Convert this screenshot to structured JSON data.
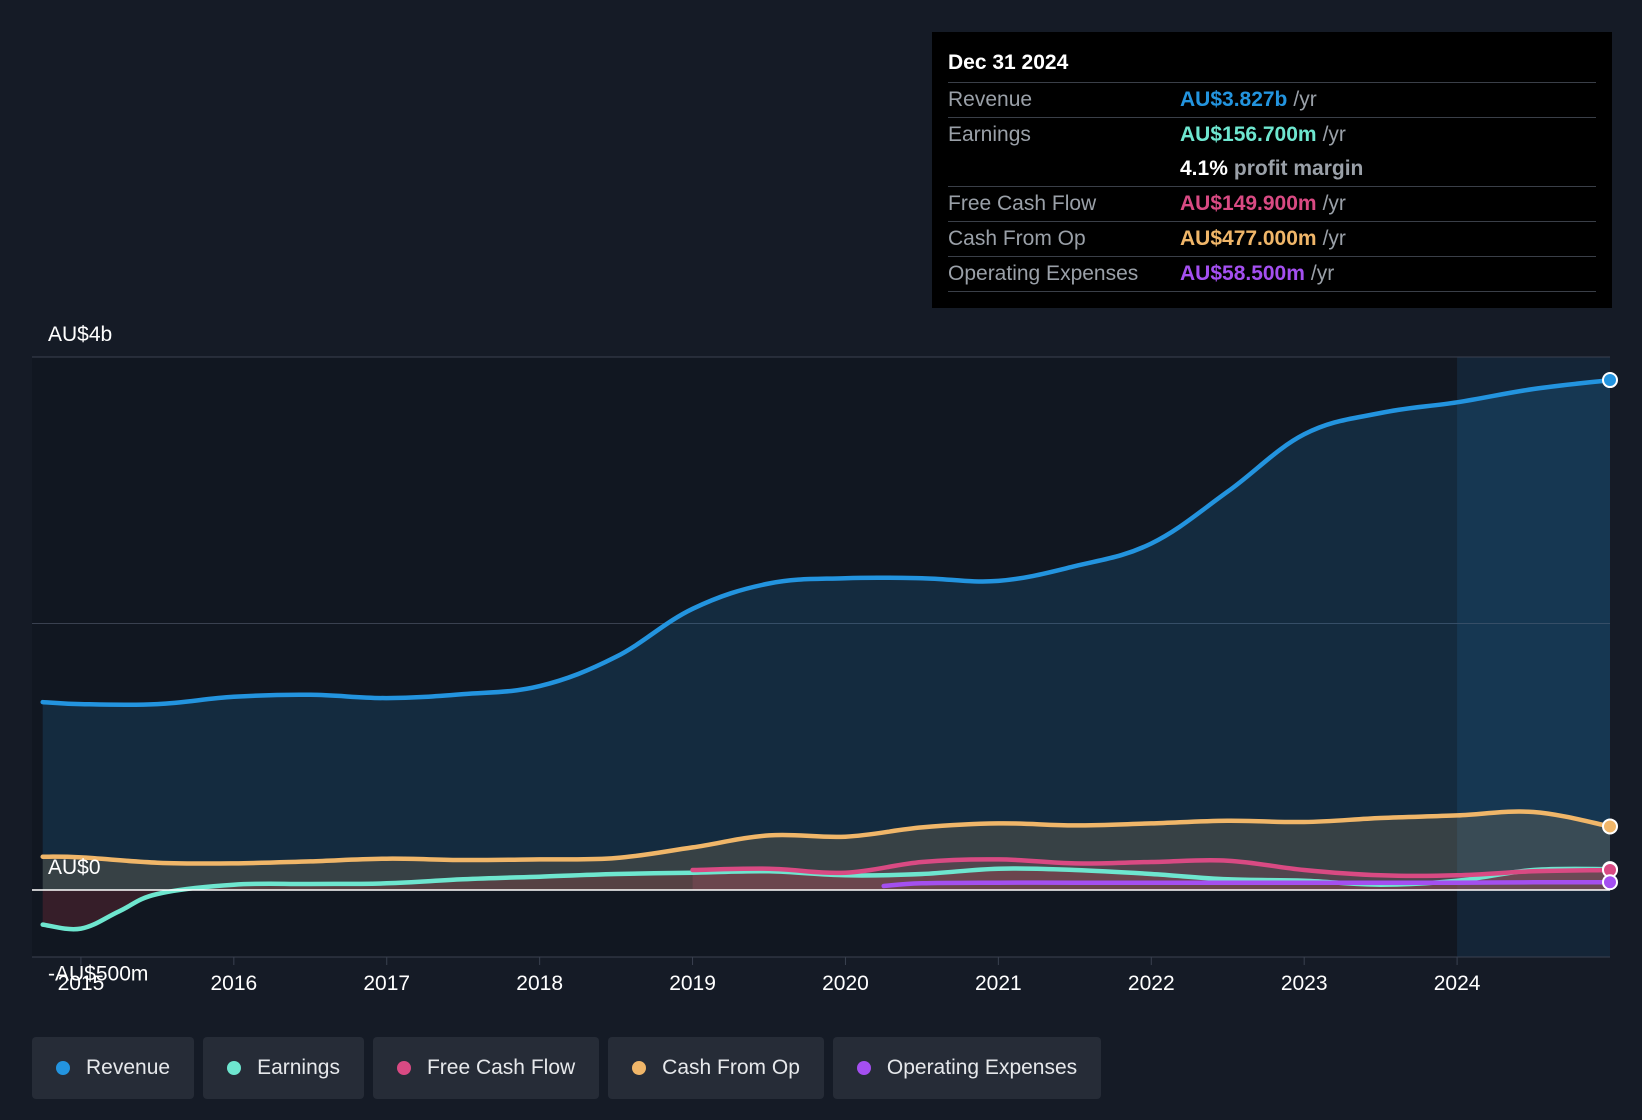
{
  "chart_data": {
    "type": "line",
    "y_unit": "AU$ millions",
    "ylim": [
      -500,
      4000
    ],
    "y_ticks": [
      {
        "value": 4000,
        "label": "AU$4b"
      },
      {
        "value": 0,
        "label": "AU$0"
      },
      {
        "value": -500,
        "label": "-AU$500m"
      }
    ],
    "xlim": [
      2014.68,
      2025.0
    ],
    "x_ticks": [
      2015,
      2016,
      2017,
      2018,
      2019,
      2020,
      2021,
      2022,
      2023,
      2024
    ],
    "highlight_start": 2024.0,
    "series": [
      {
        "name": "Revenue",
        "color": "#2394df",
        "fill": true,
        "x": [
          2014.75,
          2015.0,
          2015.5,
          2016.0,
          2016.5,
          2017.0,
          2017.5,
          2018.0,
          2018.5,
          2019.0,
          2019.5,
          2020.0,
          2020.5,
          2021.0,
          2021.5,
          2022.0,
          2022.5,
          2023.0,
          2023.5,
          2024.0,
          2024.5,
          2025.0
        ],
        "values": [
          1410,
          1395,
          1395,
          1450,
          1465,
          1440,
          1470,
          1530,
          1750,
          2110,
          2300,
          2340,
          2340,
          2320,
          2430,
          2600,
          2990,
          3420,
          3580,
          3660,
          3760,
          3827
        ]
      },
      {
        "name": "Earnings",
        "color": "#6ee6cf",
        "fill": true,
        "x": [
          2014.75,
          2015.0,
          2015.25,
          2015.5,
          2016.0,
          2016.5,
          2017.0,
          2017.5,
          2018.0,
          2018.5,
          2019.0,
          2019.5,
          2020.0,
          2020.5,
          2021.0,
          2021.5,
          2022.0,
          2022.5,
          2023.0,
          2023.5,
          2024.0,
          2024.5,
          2025.0
        ],
        "values": [
          -260,
          -290,
          -160,
          -30,
          40,
          45,
          50,
          80,
          100,
          120,
          130,
          140,
          110,
          120,
          160,
          150,
          120,
          80,
          70,
          40,
          70,
          150,
          156.7
        ]
      },
      {
        "name": "Free Cash Flow",
        "color": "#d94a83",
        "fill": true,
        "x": [
          2019.0,
          2019.5,
          2020.0,
          2020.5,
          2021.0,
          2021.5,
          2022.0,
          2022.5,
          2023.0,
          2023.5,
          2024.0,
          2024.5,
          2025.0
        ],
        "values": [
          150,
          160,
          130,
          210,
          230,
          200,
          210,
          220,
          150,
          110,
          110,
          140,
          149.9
        ]
      },
      {
        "name": "Cash From Op",
        "color": "#f0b669",
        "fill": true,
        "x": [
          2014.75,
          2015.0,
          2015.5,
          2016.0,
          2016.5,
          2017.0,
          2017.5,
          2018.0,
          2018.5,
          2019.0,
          2019.5,
          2020.0,
          2020.5,
          2021.0,
          2021.5,
          2022.0,
          2022.5,
          2023.0,
          2023.5,
          2024.0,
          2024.5,
          2025.0
        ],
        "values": [
          250,
          245,
          205,
          200,
          215,
          235,
          225,
          230,
          240,
          320,
          410,
          400,
          470,
          500,
          485,
          500,
          520,
          510,
          540,
          560,
          585,
          477
        ]
      },
      {
        "name": "Operating Expenses",
        "color": "#a44ff0",
        "fill": false,
        "x": [
          2020.25,
          2020.5,
          2021.0,
          2021.5,
          2022.0,
          2022.5,
          2023.0,
          2023.5,
          2024.0,
          2024.5,
          2025.0
        ],
        "values": [
          30,
          50,
          55,
          55,
          55,
          55,
          55,
          55,
          55,
          58,
          58.5
        ]
      }
    ]
  },
  "tooltip": {
    "date": "Dec 31 2024",
    "rows": [
      {
        "label": "Revenue",
        "value": "AU$3.827b",
        "unit": "/yr",
        "color": "#2394df"
      },
      {
        "label": "Earnings",
        "value": "AU$156.700m",
        "unit": "/yr",
        "color": "#6ee6cf"
      },
      {
        "label": "",
        "value": "4.1%",
        "unit": "profit margin",
        "color": "#ffffff"
      },
      {
        "label": "Free Cash Flow",
        "value": "AU$149.900m",
        "unit": "/yr",
        "color": "#d94a83"
      },
      {
        "label": "Cash From Op",
        "value": "AU$477.000m",
        "unit": "/yr",
        "color": "#f0b669"
      },
      {
        "label": "Operating Expenses",
        "value": "AU$58.500m",
        "unit": "/yr",
        "color": "#a44ff0"
      }
    ]
  },
  "legend": [
    {
      "label": "Revenue",
      "color": "#2394df"
    },
    {
      "label": "Earnings",
      "color": "#6ee6cf"
    },
    {
      "label": "Free Cash Flow",
      "color": "#d94a83"
    },
    {
      "label": "Cash From Op",
      "color": "#f0b669"
    },
    {
      "label": "Operating Expenses",
      "color": "#a44ff0"
    }
  ]
}
